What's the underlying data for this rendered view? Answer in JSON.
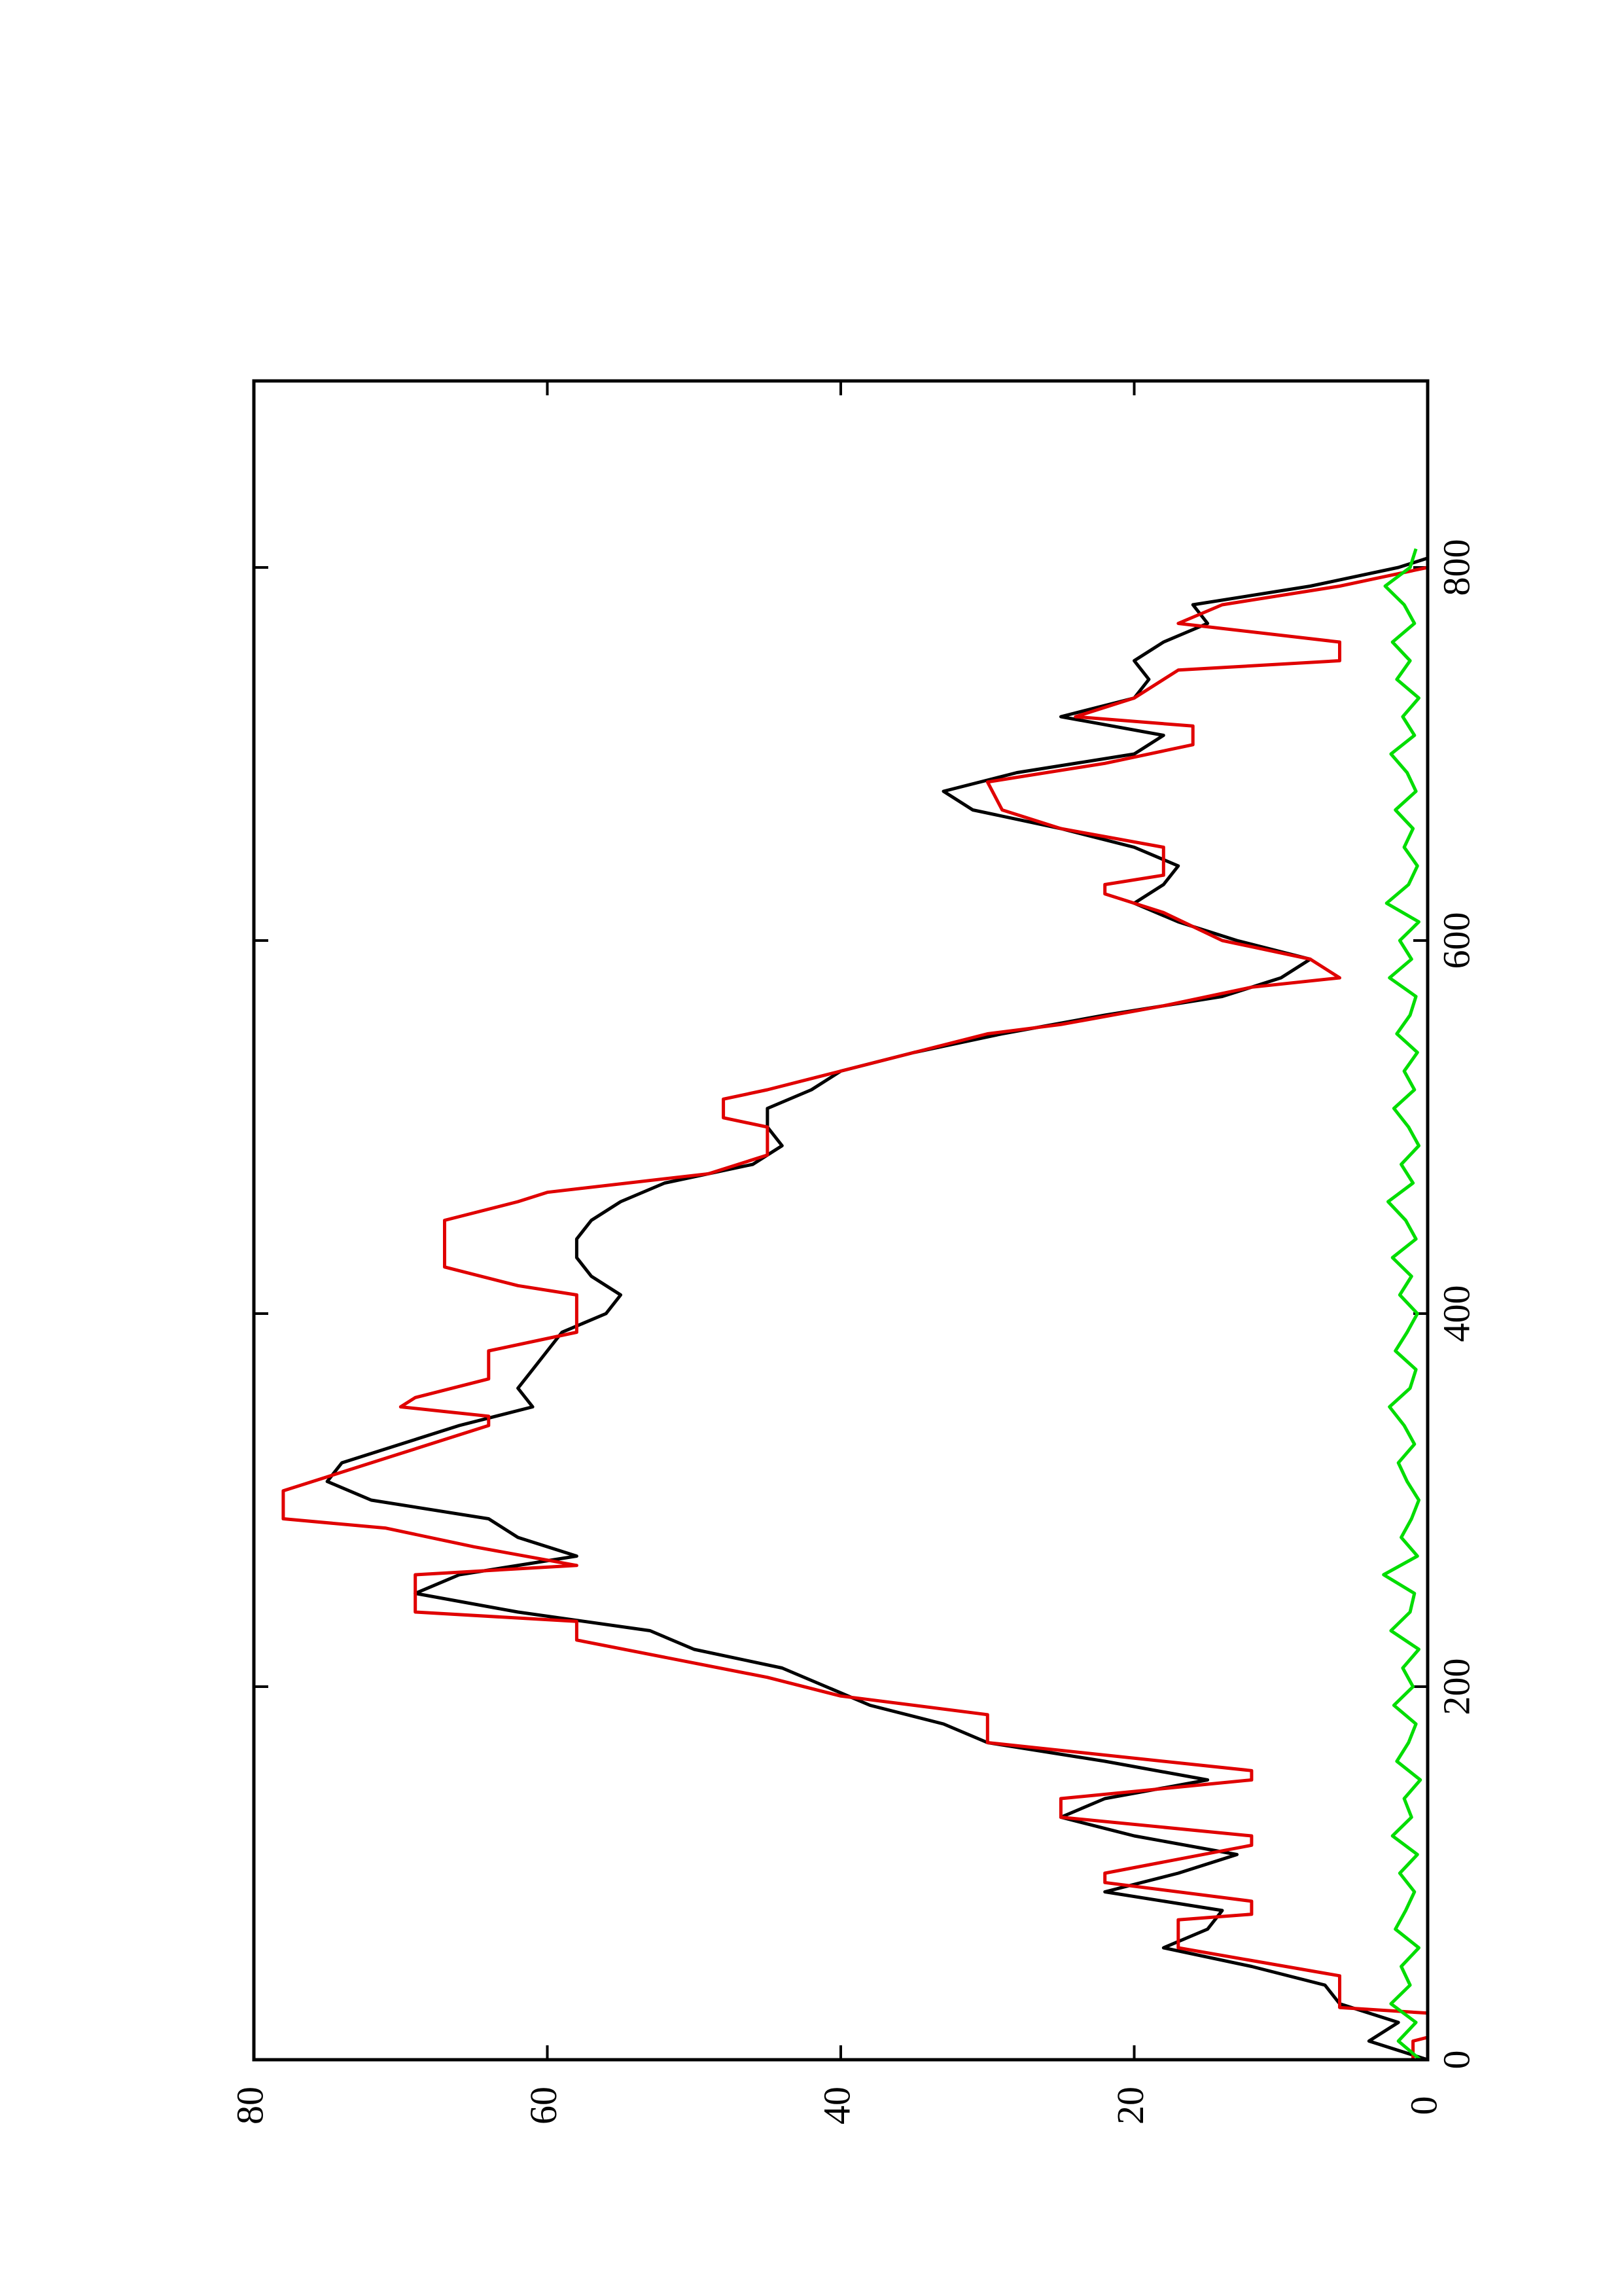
{
  "chart_data": {
    "type": "line",
    "xlim": [
      0,
      900
    ],
    "xticks": [
      0,
      200,
      400,
      600,
      800
    ],
    "ylim": [
      0,
      80
    ],
    "yticks": [
      0,
      20,
      40,
      60,
      80
    ],
    "orientation": "rotated",
    "series": [
      {
        "color": "#000000",
        "x": [
          0,
          10,
          20,
          30,
          40,
          50,
          60,
          70,
          80,
          90,
          100,
          110,
          120,
          130,
          140,
          150,
          160,
          170,
          180,
          190,
          200,
          210,
          220,
          230,
          240,
          250,
          260,
          270,
          280,
          290,
          300,
          310,
          320,
          330,
          340,
          350,
          360,
          370,
          380,
          390,
          400,
          410,
          420,
          430,
          440,
          450,
          460,
          470,
          480,
          490,
          500,
          510,
          520,
          530,
          540,
          550,
          560,
          570,
          580,
          590,
          600,
          610,
          620,
          630,
          640,
          650,
          660,
          670,
          680,
          690,
          700,
          710,
          720,
          730,
          740,
          750,
          760,
          770,
          780,
          790,
          800,
          805
        ],
        "values": [
          0,
          4,
          2,
          6,
          7,
          12,
          18,
          15,
          14,
          22,
          17,
          13,
          20,
          25,
          22,
          15,
          22,
          30,
          33,
          38,
          41,
          44,
          50,
          53,
          62,
          69,
          66,
          58,
          62,
          64,
          72,
          75,
          74,
          70,
          66,
          61,
          62,
          61,
          60,
          59,
          56,
          55,
          57,
          58,
          58,
          57,
          55,
          52,
          46,
          44,
          45,
          45,
          42,
          40,
          35,
          29,
          22,
          14,
          10,
          8,
          13,
          17,
          20,
          18,
          17,
          20,
          25,
          31,
          33,
          28,
          20,
          18,
          25,
          20,
          19,
          20,
          18,
          15,
          16,
          8,
          2,
          0
        ]
      },
      {
        "color": "#e00000",
        "x": [
          0,
          10,
          12,
          25,
          28,
          45,
          60,
          75,
          78,
          85,
          95,
          100,
          115,
          120,
          130,
          140,
          150,
          155,
          170,
          185,
          195,
          205,
          225,
          235,
          240,
          260,
          265,
          275,
          285,
          290,
          305,
          315,
          325,
          330,
          340,
          345,
          350,
          355,
          365,
          380,
          390,
          410,
          415,
          425,
          450,
          460,
          465,
          475,
          485,
          500,
          505,
          515,
          520,
          530,
          540,
          550,
          555,
          565,
          575,
          580,
          590,
          600,
          615,
          625,
          630,
          635,
          650,
          660,
          670,
          685,
          695,
          705,
          715,
          720,
          730,
          745,
          750,
          760,
          770,
          780,
          790,
          800,
          805
        ],
        "values": [
          1,
          1,
          0,
          0,
          6,
          6,
          17,
          17,
          12,
          12,
          22,
          22,
          12,
          12,
          25,
          25,
          12,
          12,
          30,
          30,
          40,
          45,
          58,
          58,
          69,
          69,
          58,
          65,
          71,
          78,
          78,
          74,
          70,
          68,
          64,
          64,
          70,
          69,
          64,
          64,
          58,
          58,
          62,
          67,
          67,
          62,
          60,
          49,
          45,
          45,
          48,
          48,
          45,
          40,
          35,
          30,
          25,
          18,
          12,
          6,
          8,
          14,
          18,
          22,
          22,
          18,
          18,
          25,
          29,
          30,
          22,
          16,
          16,
          24,
          20,
          17,
          6,
          6,
          17,
          14,
          6,
          0,
          0
        ]
      },
      {
        "color": "#00dd00",
        "x": [
          0,
          10,
          20,
          30,
          40,
          50,
          60,
          70,
          80,
          90,
          100,
          110,
          120,
          130,
          140,
          150,
          160,
          170,
          180,
          190,
          200,
          210,
          220,
          230,
          240,
          250,
          260,
          270,
          280,
          290,
          300,
          310,
          320,
          330,
          340,
          350,
          360,
          370,
          380,
          390,
          400,
          410,
          420,
          430,
          440,
          450,
          460,
          470,
          480,
          490,
          500,
          510,
          520,
          530,
          540,
          550,
          560,
          570,
          580,
          590,
          600,
          610,
          620,
          630,
          640,
          650,
          660,
          670,
          680,
          690,
          700,
          710,
          720,
          730,
          740,
          750,
          760,
          770,
          780,
          790,
          800,
          810
        ],
        "values": [
          0.5,
          2,
          0.8,
          2.5,
          1.2,
          1.8,
          0.6,
          2.2,
          1.5,
          0.9,
          1.9,
          0.7,
          2.4,
          1.1,
          1.6,
          0.5,
          2.1,
          1.3,
          0.8,
          2.3,
          1,
          1.7,
          0.6,
          2.5,
          1.2,
          0.9,
          3,
          0.7,
          1.8,
          1.1,
          0.6,
          1.4,
          2,
          0.9,
          1.6,
          2.6,
          1.2,
          0.8,
          2.2,
          1.4,
          0.7,
          1.9,
          1.1,
          2.4,
          0.8,
          1.5,
          2.7,
          1,
          1.8,
          0.6,
          1.3,
          2.3,
          0.9,
          1.6,
          0.7,
          2.1,
          1.2,
          0.8,
          2.6,
          1.1,
          1.9,
          0.6,
          2.8,
          1.3,
          0.7,
          1.6,
          1,
          2.2,
          0.8,
          1.4,
          2.5,
          0.9,
          1.7,
          0.6,
          2.1,
          1.2,
          2.4,
          0.9,
          1.6,
          2.9,
          1.2,
          0.8
        ]
      }
    ]
  }
}
